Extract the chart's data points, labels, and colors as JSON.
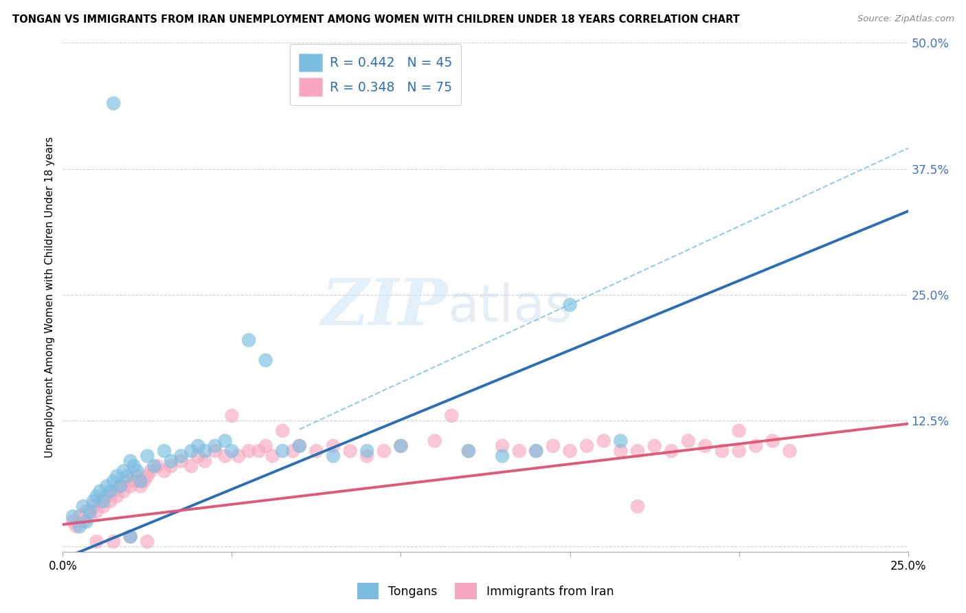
{
  "title": "TONGAN VS IMMIGRANTS FROM IRAN UNEMPLOYMENT AMONG WOMEN WITH CHILDREN UNDER 18 YEARS CORRELATION CHART",
  "source": "Source: ZipAtlas.com",
  "ylabel": "Unemployment Among Women with Children Under 18 years",
  "legend_label1": "Tongans",
  "legend_label2": "Immigrants from Iran",
  "R1": 0.442,
  "N1": 45,
  "R2": 0.348,
  "N2": 75,
  "xlim": [
    0.0,
    0.25
  ],
  "ylim": [
    -0.005,
    0.5
  ],
  "yticks": [
    0.0,
    0.125,
    0.25,
    0.375,
    0.5
  ],
  "ytick_labels": [
    "",
    "12.5%",
    "25.0%",
    "37.5%",
    "50.0%"
  ],
  "xtick_positions": [
    0.0,
    0.05,
    0.1,
    0.15,
    0.2,
    0.25
  ],
  "xtick_labels": [
    "0.0%",
    "",
    "",
    "",
    "",
    "25.0%"
  ],
  "color_blue": "#7abde0",
  "color_pink": "#f7a8c0",
  "color_blue_line": "#2b6eb5",
  "color_pink_line": "#e0587a",
  "color_dashed": "#7abde0",
  "background": "#ffffff",
  "grid_color": "#cccccc",
  "blue_line_slope": 1.38,
  "blue_line_intercept": -0.012,
  "pink_line_slope": 0.4,
  "pink_line_intercept": 0.022,
  "dashed_line_slope": 1.55,
  "dashed_line_intercept": 0.008,
  "blue_points_x": [
    0.003,
    0.005,
    0.006,
    0.007,
    0.008,
    0.009,
    0.01,
    0.011,
    0.012,
    0.013,
    0.014,
    0.015,
    0.016,
    0.017,
    0.018,
    0.019,
    0.02,
    0.021,
    0.022,
    0.023,
    0.025,
    0.027,
    0.03,
    0.032,
    0.035,
    0.038,
    0.04,
    0.042,
    0.045,
    0.048,
    0.05,
    0.055,
    0.06,
    0.065,
    0.07,
    0.08,
    0.09,
    0.1,
    0.12,
    0.13,
    0.14,
    0.15,
    0.165,
    0.015,
    0.02
  ],
  "blue_points_y": [
    0.03,
    0.02,
    0.04,
    0.025,
    0.035,
    0.045,
    0.05,
    0.055,
    0.045,
    0.06,
    0.055,
    0.065,
    0.07,
    0.06,
    0.075,
    0.07,
    0.085,
    0.08,
    0.075,
    0.065,
    0.09,
    0.08,
    0.095,
    0.085,
    0.09,
    0.095,
    0.1,
    0.095,
    0.1,
    0.105,
    0.095,
    0.205,
    0.185,
    0.095,
    0.1,
    0.09,
    0.095,
    0.1,
    0.095,
    0.09,
    0.095,
    0.24,
    0.105,
    0.44,
    0.01
  ],
  "pink_points_x": [
    0.003,
    0.004,
    0.005,
    0.006,
    0.007,
    0.008,
    0.009,
    0.01,
    0.011,
    0.012,
    0.013,
    0.014,
    0.015,
    0.016,
    0.017,
    0.018,
    0.019,
    0.02,
    0.021,
    0.022,
    0.023,
    0.024,
    0.025,
    0.026,
    0.028,
    0.03,
    0.032,
    0.035,
    0.038,
    0.04,
    0.042,
    0.045,
    0.048,
    0.05,
    0.052,
    0.055,
    0.058,
    0.06,
    0.062,
    0.065,
    0.068,
    0.07,
    0.075,
    0.08,
    0.085,
    0.09,
    0.095,
    0.1,
    0.11,
    0.115,
    0.12,
    0.13,
    0.135,
    0.14,
    0.145,
    0.15,
    0.155,
    0.16,
    0.165,
    0.17,
    0.175,
    0.18,
    0.185,
    0.19,
    0.195,
    0.2,
    0.205,
    0.21,
    0.215,
    0.01,
    0.015,
    0.02,
    0.025,
    0.2,
    0.17
  ],
  "pink_points_y": [
    0.025,
    0.02,
    0.03,
    0.025,
    0.035,
    0.03,
    0.04,
    0.035,
    0.045,
    0.04,
    0.05,
    0.045,
    0.055,
    0.05,
    0.06,
    0.055,
    0.065,
    0.06,
    0.065,
    0.07,
    0.06,
    0.065,
    0.07,
    0.075,
    0.08,
    0.075,
    0.08,
    0.085,
    0.08,
    0.09,
    0.085,
    0.095,
    0.09,
    0.13,
    0.09,
    0.095,
    0.095,
    0.1,
    0.09,
    0.115,
    0.095,
    0.1,
    0.095,
    0.1,
    0.095,
    0.09,
    0.095,
    0.1,
    0.105,
    0.13,
    0.095,
    0.1,
    0.095,
    0.095,
    0.1,
    0.095,
    0.1,
    0.105,
    0.095,
    0.095,
    0.1,
    0.095,
    0.105,
    0.1,
    0.095,
    0.095,
    0.1,
    0.105,
    0.095,
    0.005,
    0.005,
    0.01,
    0.005,
    0.115,
    0.04
  ]
}
